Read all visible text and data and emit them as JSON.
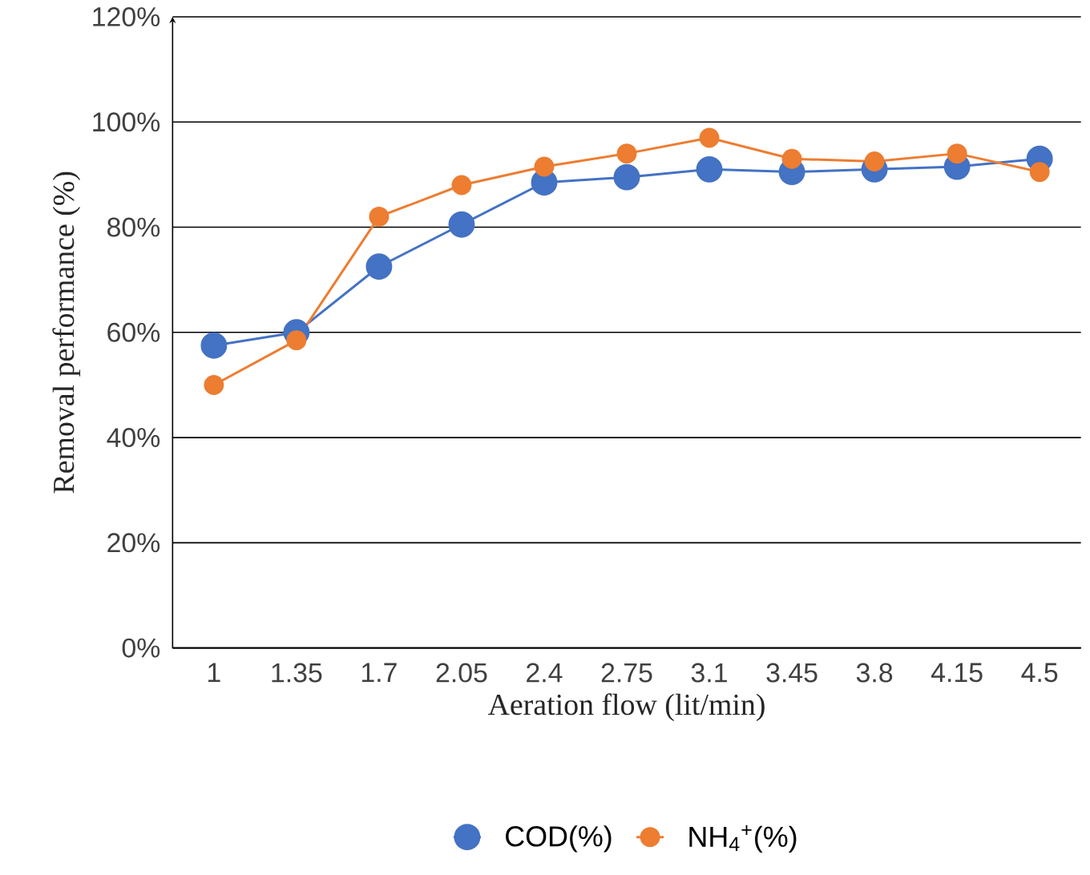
{
  "chart_data": {
    "type": "line",
    "xlabel": "Aeration flow (lit/min)",
    "ylabel": "Removal performance (%)",
    "categories": [
      "1",
      "1.35",
      "1.7",
      "2.05",
      "2.4",
      "2.75",
      "3.1",
      "3.45",
      "3.8",
      "4.15",
      "4.5"
    ],
    "series": [
      {
        "name": "COD(%)",
        "color": "#4472c4",
        "values": [
          57.5,
          60,
          72.5,
          80.5,
          88.5,
          89.5,
          91,
          90.5,
          91,
          91.5,
          93
        ]
      },
      {
        "name": "NH$_{4}$$^{+}$(%)",
        "color": "#ed7d31",
        "values": [
          50,
          58.5,
          82,
          88,
          91.5,
          94,
          97,
          93,
          92.5,
          94,
          90.5
        ]
      }
    ],
    "ylim": [
      0,
      120
    ],
    "yticks": [
      {
        "value": 0,
        "label": "0%"
      },
      {
        "value": 20,
        "label": "20%"
      },
      {
        "value": 40,
        "label": "40%"
      },
      {
        "value": 60,
        "label": "60%"
      },
      {
        "value": 80,
        "label": "80%"
      },
      {
        "value": 100,
        "label": "100%"
      },
      {
        "value": 120,
        "label": "120%"
      }
    ],
    "grid": "y",
    "legend": "bottom",
    "marker": "circle",
    "line_style": "solid"
  }
}
